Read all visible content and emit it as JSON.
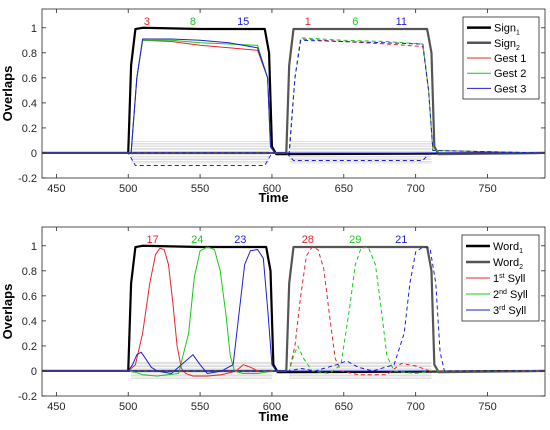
{
  "chart_data": [
    {
      "type": "line",
      "xlabel": "Time",
      "ylabel": "Overlaps",
      "xlim": [
        440,
        790
      ],
      "ylim": [
        -0.2,
        1.15
      ],
      "xticks": [
        "450",
        "500",
        "550",
        "600",
        "650",
        "700",
        "750"
      ],
      "yticks": [
        "-0.2",
        "0",
        "0.2",
        "0.4",
        "0.6",
        "0.8",
        "1"
      ],
      "legend": {
        "placement": "top-right",
        "entries": [
          {
            "main": "Sign",
            "sub": "1",
            "sup": "",
            "rest": "",
            "color": "#000000",
            "width": 2.5,
            "dash": false
          },
          {
            "main": "Sign",
            "sub": "2",
            "sup": "",
            "rest": "",
            "color": "#555555",
            "width": 2.5,
            "dash": false
          },
          {
            "main": "Gest 1",
            "sub": "",
            "sup": "",
            "rest": "",
            "color": "#e8262a",
            "width": 1,
            "dash": false
          },
          {
            "main": "Gest 2",
            "sub": "",
            "sup": "",
            "rest": "",
            "color": "#19c919",
            "width": 1,
            "dash": false
          },
          {
            "main": "Gest 3",
            "sub": "",
            "sup": "",
            "rest": "",
            "color": "#1f1fd6",
            "width": 1,
            "dash": false
          }
        ]
      },
      "annotations": [
        {
          "text": "3",
          "x": 513,
          "color": "#e8262a"
        },
        {
          "text": "8",
          "x": 545,
          "color": "#19c919"
        },
        {
          "text": "15",
          "x": 580,
          "color": "#1f1fd6"
        },
        {
          "text": "1",
          "x": 625,
          "color": "#e8262a"
        },
        {
          "text": "6",
          "x": 658,
          "color": "#19c919"
        },
        {
          "text": "11",
          "x": 690,
          "color": "#1f1fd6"
        }
      ],
      "series": [
        {
          "name": "Sign1",
          "color": "#000000",
          "width": 2.2,
          "dash": false,
          "x": [
            440,
            500,
            502,
            505,
            510,
            550,
            595,
            598,
            600,
            603,
            790
          ],
          "y": [
            0,
            0,
            0.7,
            0.99,
            1.0,
            0.99,
            0.99,
            0.8,
            0.05,
            -0.01,
            0
          ]
        },
        {
          "name": "Sign2",
          "color": "#555555",
          "width": 2.2,
          "dash": false,
          "x": [
            440,
            610,
            612,
            615,
            620,
            660,
            708,
            711,
            713,
            716,
            790
          ],
          "y": [
            0,
            0,
            0.7,
            0.99,
            0.99,
            0.99,
            0.99,
            0.8,
            0.05,
            -0.01,
            0
          ]
        },
        {
          "name": "Gest 1",
          "color": "#e8262a",
          "width": 1,
          "dash": false,
          "x": [
            440,
            502,
            506,
            510,
            530,
            550,
            570,
            590,
            597,
            599,
            602,
            790
          ],
          "y": [
            0,
            0,
            0.6,
            0.9,
            0.89,
            0.86,
            0.84,
            0.82,
            0.6,
            0.05,
            0,
            0
          ]
        },
        {
          "name": "Gest 2",
          "color": "#19c919",
          "width": 1,
          "dash": false,
          "x": [
            440,
            502,
            506,
            510,
            530,
            550,
            570,
            590,
            597,
            599,
            602,
            790
          ],
          "y": [
            0,
            0,
            0.6,
            0.9,
            0.9,
            0.88,
            0.87,
            0.86,
            0.6,
            0.05,
            0,
            0
          ]
        },
        {
          "name": "Gest 3",
          "color": "#1f1fd6",
          "width": 1,
          "dash": false,
          "x": [
            440,
            502,
            506,
            510,
            530,
            550,
            570,
            590,
            597,
            599,
            602,
            790
          ],
          "y": [
            0,
            0,
            0.6,
            0.91,
            0.91,
            0.9,
            0.88,
            0.84,
            0.6,
            0.05,
            0,
            0
          ]
        },
        {
          "name": "Gest 1 (sign 2)",
          "color": "#e8262a",
          "width": 1,
          "dash": true,
          "x": [
            440,
            612,
            616,
            620,
            650,
            680,
            705,
            709,
            712,
            790
          ],
          "y": [
            0,
            0,
            0.6,
            0.91,
            0.89,
            0.87,
            0.85,
            0.5,
            0.02,
            0
          ]
        },
        {
          "name": "Gest 2 (sign 2)",
          "color": "#19c919",
          "width": 1,
          "dash": true,
          "x": [
            440,
            612,
            616,
            620,
            650,
            680,
            705,
            709,
            712,
            790
          ],
          "y": [
            0,
            0,
            0.6,
            0.92,
            0.9,
            0.89,
            0.87,
            0.5,
            0.02,
            0
          ]
        },
        {
          "name": "Gest 3 (sign 2)",
          "color": "#1f1fd6",
          "width": 1,
          "dash": true,
          "x": [
            440,
            612,
            616,
            620,
            650,
            680,
            705,
            709,
            712,
            790
          ],
          "y": [
            0,
            0,
            0.6,
            0.9,
            0.89,
            0.88,
            0.87,
            0.5,
            0.02,
            0
          ]
        },
        {
          "name": "",
          "color": "#1f1fd6",
          "width": 1,
          "dash": true,
          "x": [
            440,
            500,
            505,
            595,
            600,
            790
          ],
          "y": [
            0,
            0,
            -0.1,
            -0.1,
            0,
            0
          ]
        },
        {
          "name": "",
          "color": "#1f1fd6",
          "width": 1,
          "dash": true,
          "x": [
            440,
            610,
            615,
            705,
            710,
            790
          ],
          "y": [
            0,
            0,
            -0.06,
            -0.06,
            0,
            0
          ]
        }
      ],
      "background_band": {
        "color": "#bfbfbf",
        "count": 14,
        "ranges": [
          [
            502,
            598
          ],
          [
            612,
            711
          ]
        ],
        "ymin": -0.08,
        "ymax": 0.09
      }
    },
    {
      "type": "line",
      "xlabel": "Time",
      "ylabel": "Overlaps",
      "xlim": [
        440,
        790
      ],
      "ylim": [
        -0.2,
        1.15
      ],
      "xticks": [
        "450",
        "500",
        "550",
        "600",
        "650",
        "700",
        "750"
      ],
      "yticks": [
        "-0.2",
        "0",
        "0.2",
        "0.4",
        "0.6",
        "0.8",
        "1"
      ],
      "legend": {
        "placement": "top-right",
        "entries": [
          {
            "main": "Word",
            "sub": "1",
            "sup": "",
            "rest": "",
            "color": "#000000",
            "width": 2.5,
            "dash": false
          },
          {
            "main": "Word",
            "sub": "2",
            "sup": "",
            "rest": "",
            "color": "#555555",
            "width": 2.5,
            "dash": false
          },
          {
            "main": "1",
            "sub": "",
            "sup": "st",
            "rest": " Syll",
            "color": "#e8262a",
            "width": 1,
            "dash": false
          },
          {
            "main": "2",
            "sub": "",
            "sup": "nd",
            "rest": " Syll",
            "color": "#19c919",
            "width": 1,
            "dash": false
          },
          {
            "main": "3",
            "sub": "",
            "sup": "rd",
            "rest": " Syll",
            "color": "#1f1fd6",
            "width": 1,
            "dash": false
          }
        ]
      },
      "annotations": [
        {
          "text": "17",
          "x": 517,
          "color": "#e8262a"
        },
        {
          "text": "24",
          "x": 548,
          "color": "#19c919"
        },
        {
          "text": "23",
          "x": 578,
          "color": "#1f1fd6"
        },
        {
          "text": "28",
          "x": 625,
          "color": "#e8262a"
        },
        {
          "text": "29",
          "x": 658,
          "color": "#19c919"
        },
        {
          "text": "21",
          "x": 690,
          "color": "#1f1fd6"
        }
      ],
      "series": [
        {
          "name": "Word1",
          "color": "#000000",
          "width": 2.2,
          "dash": false,
          "x": [
            440,
            500,
            502,
            505,
            510,
            550,
            596,
            599,
            601,
            604,
            790
          ],
          "y": [
            0,
            0,
            0.7,
            0.99,
            1.0,
            0.99,
            0.99,
            0.8,
            0.05,
            -0.01,
            0
          ]
        },
        {
          "name": "Word2",
          "color": "#555555",
          "width": 2.2,
          "dash": false,
          "x": [
            440,
            610,
            612,
            615,
            620,
            660,
            708,
            711,
            713,
            716,
            790
          ],
          "y": [
            0,
            0,
            0.7,
            0.99,
            0.99,
            0.99,
            0.99,
            0.8,
            0.05,
            -0.01,
            0
          ]
        },
        {
          "name": "1st Syll",
          "color": "#e8262a",
          "width": 1,
          "dash": false,
          "x": [
            440,
            500,
            505,
            510,
            515,
            519,
            522,
            525,
            528,
            531,
            534,
            537,
            540,
            545,
            555,
            565,
            575,
            580,
            585,
            590,
            600,
            605,
            790
          ],
          "y": [
            0,
            0,
            0.05,
            0.3,
            0.7,
            0.93,
            0.98,
            0.97,
            0.85,
            0.55,
            0.2,
            0.02,
            -0.02,
            -0.04,
            -0.04,
            -0.03,
            0,
            0.05,
            0.03,
            0,
            0,
            0,
            0
          ]
        },
        {
          "name": "2nd Syll",
          "color": "#19c919",
          "width": 1,
          "dash": false,
          "x": [
            440,
            500,
            505,
            510,
            520,
            535,
            542,
            546,
            550,
            555,
            560,
            564,
            568,
            571,
            574,
            580,
            590,
            600,
            605,
            790
          ],
          "y": [
            0,
            0,
            -0.01,
            -0.03,
            -0.04,
            -0.02,
            0.3,
            0.75,
            0.96,
            0.99,
            0.97,
            0.8,
            0.45,
            0.12,
            0.0,
            -0.02,
            -0.02,
            0,
            0,
            0
          ]
        },
        {
          "name": "3rd Syll",
          "color": "#1f1fd6",
          "width": 1,
          "dash": false,
          "x": [
            440,
            500,
            503,
            506,
            509,
            512,
            516,
            520,
            530,
            540,
            545,
            550,
            555,
            565,
            573,
            577,
            581,
            585,
            590,
            594,
            597,
            600,
            603,
            790
          ],
          "y": [
            0,
            0,
            0.05,
            0.13,
            0.15,
            0.1,
            0.03,
            0,
            -0.02,
            0.08,
            0.13,
            0.05,
            -0.02,
            0.0,
            0.05,
            0.45,
            0.85,
            0.96,
            0.97,
            0.9,
            0.5,
            0.05,
            0,
            0
          ]
        },
        {
          "name": "1st Syll (word 2)",
          "color": "#e8262a",
          "width": 1,
          "dash": true,
          "x": [
            440,
            612,
            616,
            620,
            624,
            628,
            632,
            636,
            640,
            644,
            648,
            660,
            680,
            690,
            700,
            710,
            790
          ],
          "y": [
            0,
            0,
            0.2,
            0.6,
            0.92,
            0.99,
            0.97,
            0.82,
            0.45,
            0.1,
            0.0,
            -0.03,
            -0.03,
            0.06,
            0.04,
            0,
            0
          ]
        },
        {
          "name": "2nd Syll (word 2)",
          "color": "#19c919",
          "width": 1,
          "dash": true,
          "x": [
            440,
            612,
            615,
            618,
            622,
            628,
            640,
            648,
            654,
            658,
            662,
            667,
            672,
            676,
            680,
            685,
            700,
            710,
            790
          ],
          "y": [
            0,
            0,
            0.12,
            0.2,
            0.1,
            0,
            -0.02,
            0.05,
            0.5,
            0.85,
            0.98,
            0.99,
            0.85,
            0.5,
            0.12,
            0,
            -0.02,
            0,
            0
          ]
        },
        {
          "name": "3rd Syll (word 2)",
          "color": "#1f1fd6",
          "width": 1,
          "dash": true,
          "x": [
            440,
            612,
            620,
            630,
            645,
            652,
            660,
            670,
            685,
            692,
            696,
            700,
            705,
            710,
            714,
            717,
            720,
            790
          ],
          "y": [
            0,
            0,
            0.02,
            0,
            0.05,
            0.08,
            0.03,
            0,
            0.05,
            0.3,
            0.7,
            0.95,
            0.99,
            0.98,
            0.7,
            0.15,
            0,
            0
          ]
        }
      ],
      "background_band": {
        "color": "#bfbfbf",
        "count": 12,
        "ranges": [
          [
            502,
            600
          ],
          [
            612,
            711
          ]
        ],
        "ymin": -0.06,
        "ymax": 0.07
      }
    }
  ]
}
